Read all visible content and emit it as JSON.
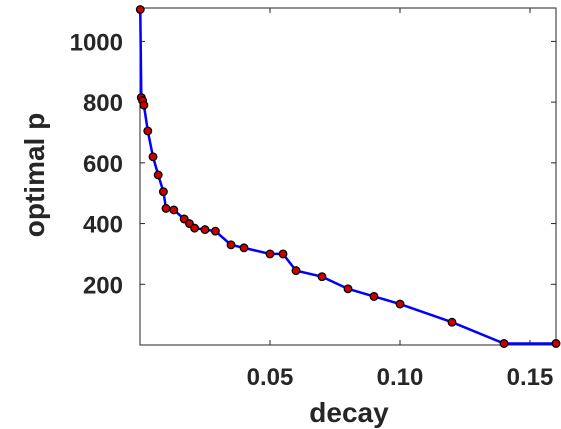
{
  "chart_data": {
    "type": "line",
    "title": "",
    "xlabel": "decay",
    "ylabel": "optimal p",
    "xlim": [
      0,
      0.16
    ],
    "ylim": [
      0,
      1110
    ],
    "x_ticks": [
      0.05,
      0.1,
      0.15
    ],
    "x_tick_labels": [
      "0.05",
      "0.10",
      "0.15"
    ],
    "y_ticks": [
      200,
      400,
      600,
      800,
      1000
    ],
    "y_tick_labels": [
      "200",
      "400",
      "600",
      "800",
      "1000"
    ],
    "grid": false,
    "legend": "none",
    "series": [
      {
        "line_color": "#0000ff",
        "marker_color": "#cc0000",
        "marker_edge": "#000000",
        "x": [
          0.0001,
          0.0005,
          0.001,
          0.0015,
          0.003,
          0.005,
          0.007,
          0.009,
          0.01,
          0.013,
          0.017,
          0.019,
          0.021,
          0.025,
          0.029,
          0.035,
          0.04,
          0.05,
          0.055,
          0.06,
          0.07,
          0.08,
          0.09,
          0.1,
          0.12,
          0.14,
          0.16
        ],
        "y": [
          1105,
          815,
          805,
          790,
          705,
          620,
          560,
          505,
          450,
          445,
          415,
          400,
          385,
          380,
          375,
          330,
          320,
          300,
          300,
          245,
          225,
          185,
          160,
          135,
          75,
          5,
          5
        ]
      }
    ]
  }
}
